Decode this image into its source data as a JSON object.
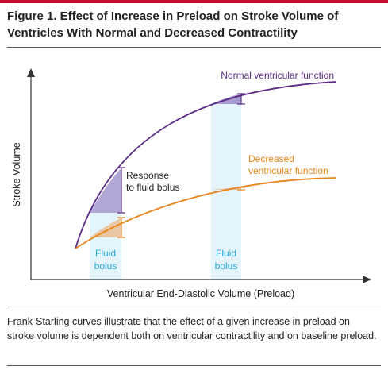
{
  "title": "Figure 1. Effect of Increase in Preload on Stroke Volume of Ventricles With Normal and Decreased Contractility",
  "caption": "Frank-Starling curves illustrate that the effect of a given increase in preload on stroke volume is dependent both on ventricular contractility and on baseline preload.",
  "axes": {
    "x_label": "Ventricular End-Diastolic Volume (Preload)",
    "y_label": "Stroke Volume"
  },
  "curves": {
    "normal": {
      "label": "Normal ventricular function",
      "color": "#5b2a86"
    },
    "decreased": {
      "label_line1": "Decreased",
      "label_line2": "ventricular function",
      "color": "#e8841a"
    }
  },
  "annotations": {
    "response_line1": "Response",
    "response_line2": "to fluid bolus",
    "bolus_left_line1": "Fluid",
    "bolus_left_line2": "bolus",
    "bolus_right_line1": "Fluid",
    "bolus_right_line2": "bolus",
    "bolus_text_color": "#2aa7d6",
    "bolus_fill_color": "#e3f4fb"
  }
}
